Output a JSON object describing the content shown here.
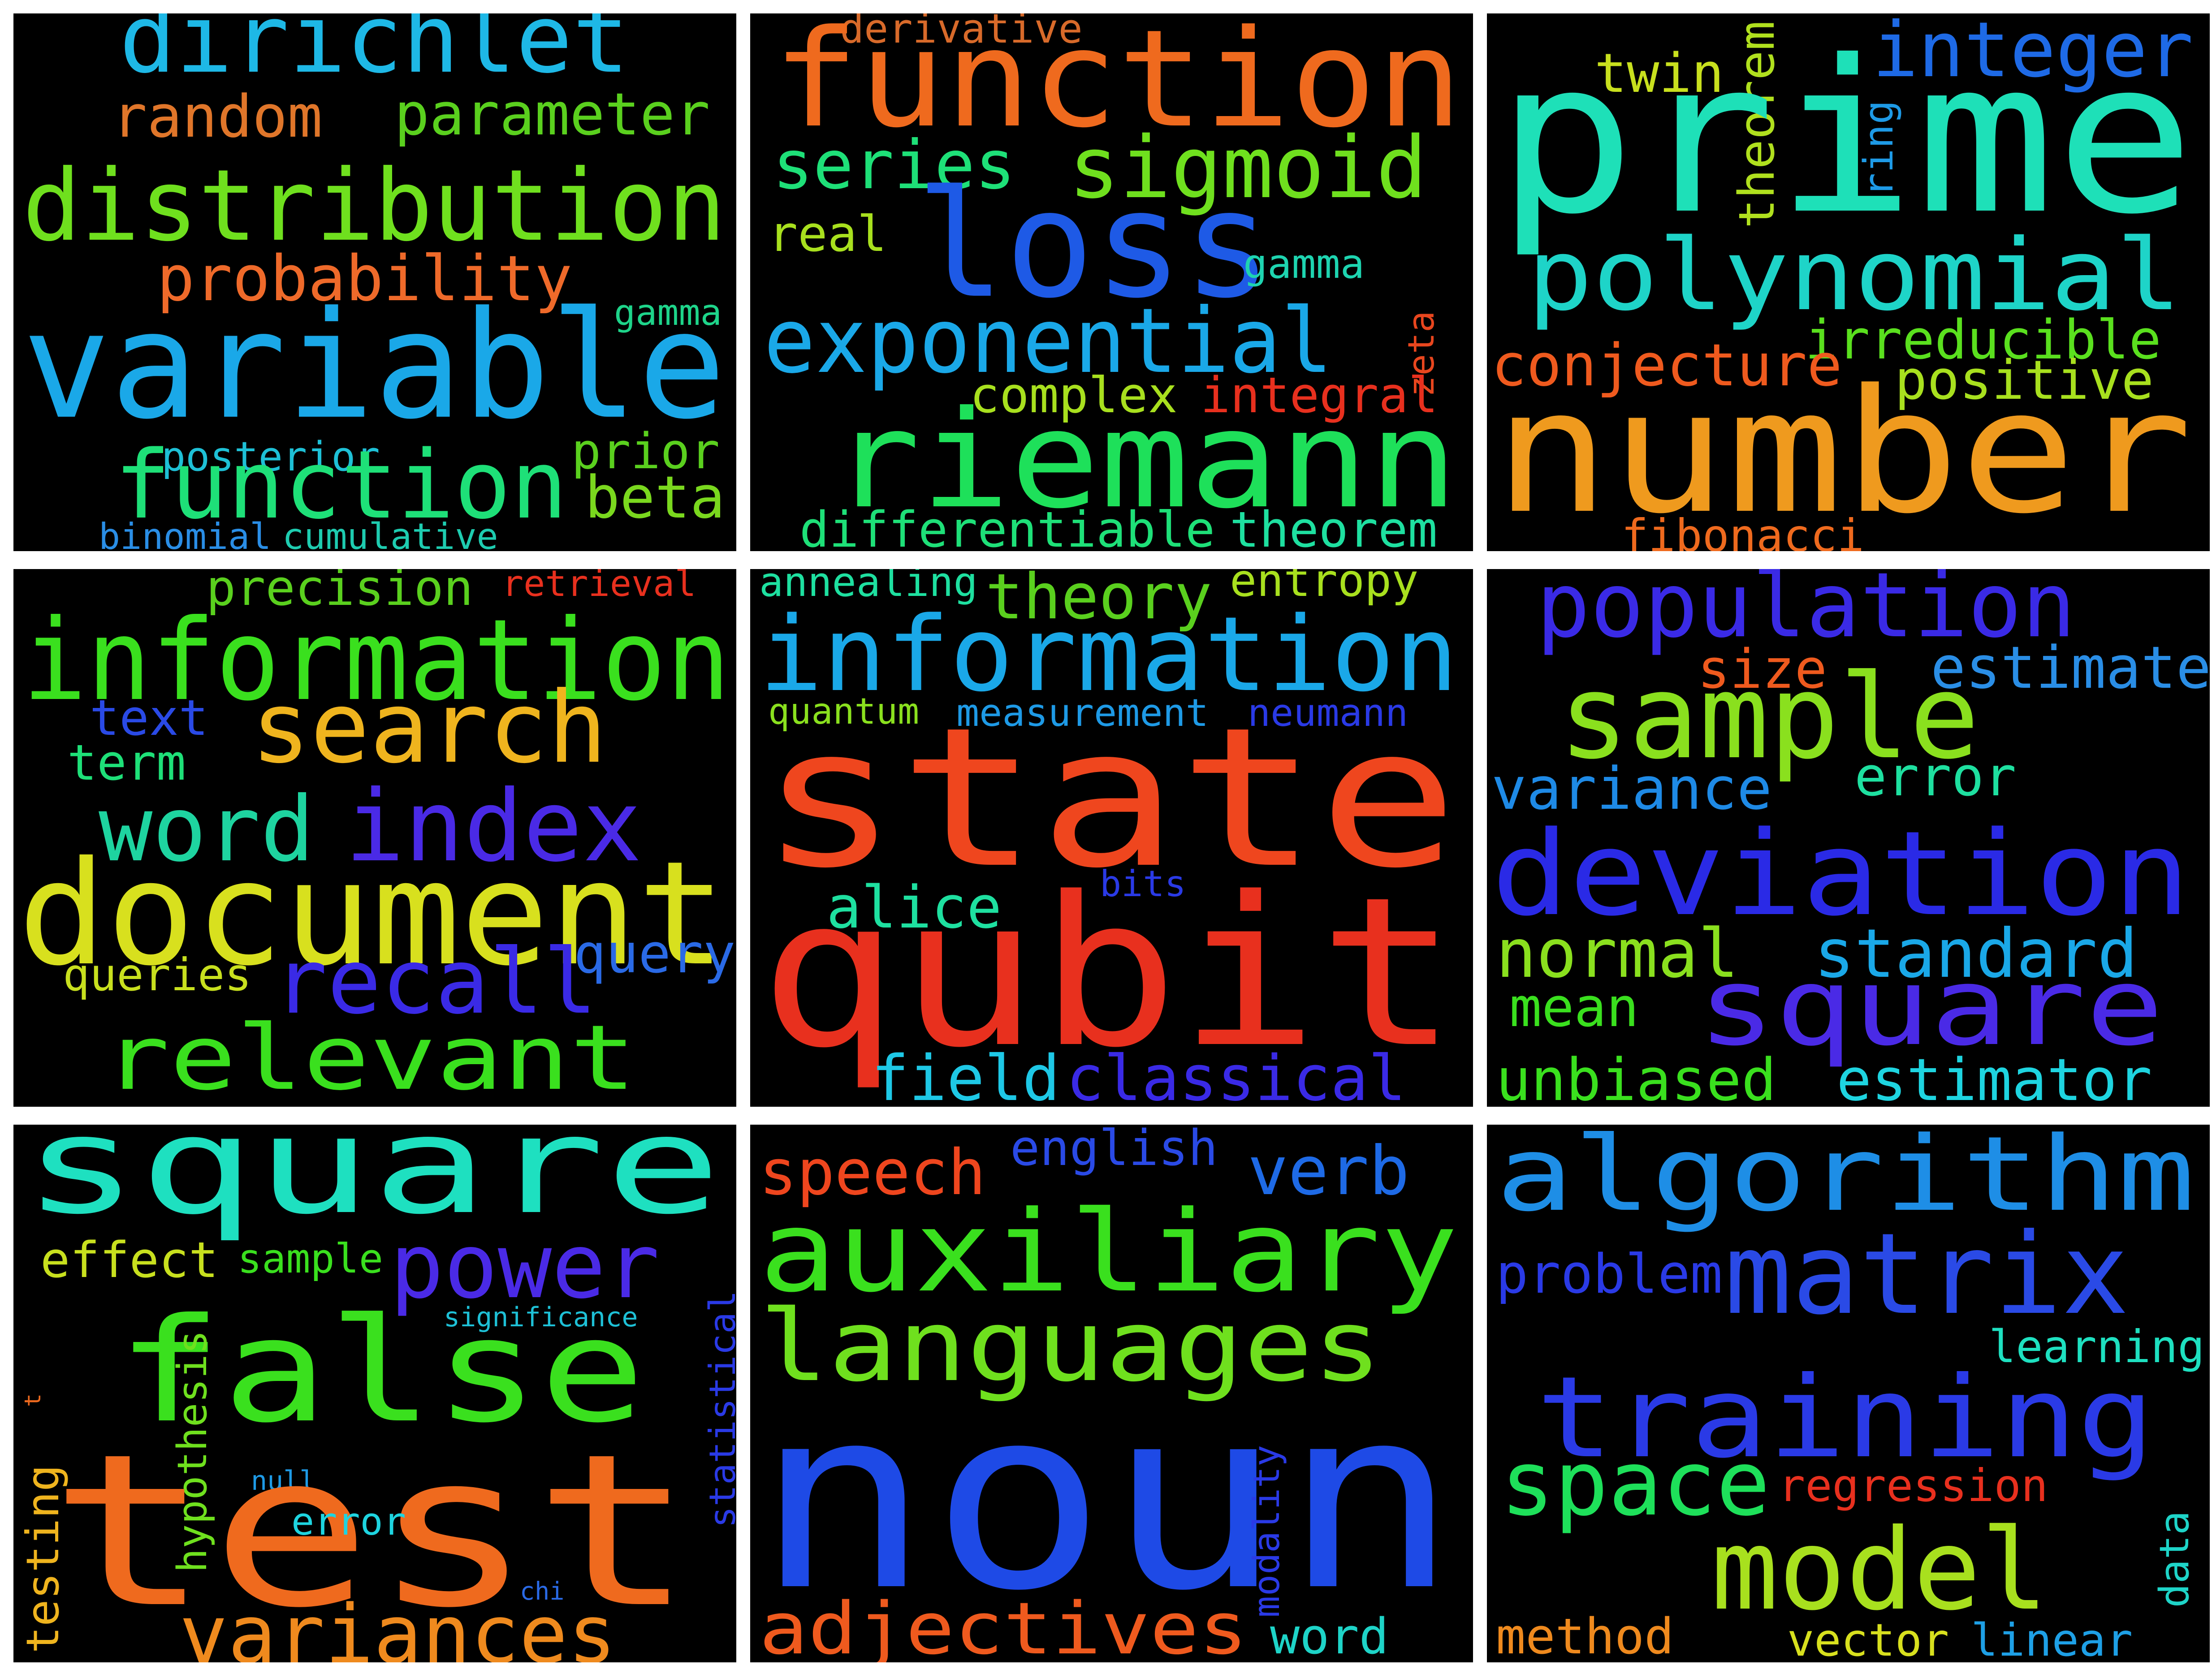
{
  "wordclouds": [
    {
      "words": [
        {
          "text": "dirichlet",
          "color": "#1eb8e6"
        },
        {
          "text": "random",
          "color": "#e0762a"
        },
        {
          "text": "parameter",
          "color": "#5ad01e"
        },
        {
          "text": "distribution",
          "color": "#6fe01e"
        },
        {
          "text": "probability",
          "color": "#ef6a2a"
        },
        {
          "text": "gamma",
          "color": "#1ed48a"
        },
        {
          "text": "variable",
          "color": "#1aa8e8"
        },
        {
          "text": "posterior",
          "color": "#1ec0d6"
        },
        {
          "text": "prior",
          "color": "#5ad01e"
        },
        {
          "text": "function",
          "color": "#1ee078"
        },
        {
          "text": "beta",
          "color": "#7ad81e"
        },
        {
          "text": "binomial",
          "color": "#2a8ee6"
        },
        {
          "text": "cumulative",
          "color": "#1eccb0"
        }
      ]
    },
    {
      "words": [
        {
          "text": "derivative",
          "color": "#d86a2a"
        },
        {
          "text": "function",
          "color": "#ef6a1e"
        },
        {
          "text": "series",
          "color": "#1ee078"
        },
        {
          "text": "sigmoid",
          "color": "#6fe01e"
        },
        {
          "text": "real",
          "color": "#a8e01e"
        },
        {
          "text": "loss",
          "color": "#1e5ae6"
        },
        {
          "text": "gamma",
          "color": "#1ed4b0"
        },
        {
          "text": "zeta",
          "color": "#e8461e"
        },
        {
          "text": "exponential",
          "color": "#1aa8e8"
        },
        {
          "text": "complex",
          "color": "#a8e01e"
        },
        {
          "text": "integral",
          "color": "#e8301e"
        },
        {
          "text": "riemann",
          "color": "#1ee05a"
        },
        {
          "text": "differentiable",
          "color": "#1ee078"
        },
        {
          "text": "theorem",
          "color": "#1ee0a0"
        }
      ]
    },
    {
      "words": [
        {
          "text": "twin",
          "color": "#c8e01e"
        },
        {
          "text": "theorem",
          "color": "#b0e01e"
        },
        {
          "text": "integer",
          "color": "#1e6ae6"
        },
        {
          "text": "prime",
          "color": "#1ee0b8"
        },
        {
          "text": "ring",
          "color": "#1e9ae6"
        },
        {
          "text": "polynomial",
          "color": "#1ed4c8"
        },
        {
          "text": "irreducible",
          "color": "#5ae01e"
        },
        {
          "text": "conjecture",
          "color": "#ef5a1e"
        },
        {
          "text": "positive",
          "color": "#a8e01e"
        },
        {
          "text": "number",
          "color": "#ef9a1e"
        },
        {
          "text": "fibonacci",
          "color": "#ef6a1e"
        }
      ]
    },
    {
      "words": [
        {
          "text": "precision",
          "color": "#5ad01e"
        },
        {
          "text": "retrieval",
          "color": "#e8301e"
        },
        {
          "text": "information",
          "color": "#3ae01e"
        },
        {
          "text": "text",
          "color": "#2a4ae6"
        },
        {
          "text": "search",
          "color": "#efb41e"
        },
        {
          "text": "term",
          "color": "#1ee078"
        },
        {
          "text": "word",
          "color": "#1ed4a0"
        },
        {
          "text": "index",
          "color": "#4a2ae6"
        },
        {
          "text": "document",
          "color": "#d8e01e"
        },
        {
          "text": "queries",
          "color": "#c8e01e"
        },
        {
          "text": "recall",
          "color": "#3a2ae6"
        },
        {
          "text": "query",
          "color": "#2a6ae6"
        },
        {
          "text": "relevant",
          "color": "#3ae01e"
        }
      ]
    },
    {
      "words": [
        {
          "text": "annealing",
          "color": "#1ee0a0"
        },
        {
          "text": "theory",
          "color": "#5ad01e"
        },
        {
          "text": "entropy",
          "color": "#a8e01e"
        },
        {
          "text": "information",
          "color": "#1aa8e8"
        },
        {
          "text": "quantum",
          "color": "#8ae01e"
        },
        {
          "text": "measurement",
          "color": "#1e9ae6"
        },
        {
          "text": "neumann",
          "color": "#2a3ae6"
        },
        {
          "text": "state",
          "color": "#ef461e"
        },
        {
          "text": "alice",
          "color": "#1ee0a0"
        },
        {
          "text": "bits",
          "color": "#2a3ae6"
        },
        {
          "text": "qubit",
          "color": "#e8301e"
        },
        {
          "text": "field",
          "color": "#1ec8e6"
        },
        {
          "text": "classical",
          "color": "#3a2ae6"
        }
      ]
    },
    {
      "words": [
        {
          "text": "population",
          "color": "#3a2ae6"
        },
        {
          "text": "size",
          "color": "#ef5a1e"
        },
        {
          "text": "estimate",
          "color": "#2a8ee6"
        },
        {
          "text": "sample",
          "color": "#8ae01e"
        },
        {
          "text": "variance",
          "color": "#1e8ae6"
        },
        {
          "text": "error",
          "color": "#1ee0a0"
        },
        {
          "text": "deviation",
          "color": "#2a2ae6"
        },
        {
          "text": "normal",
          "color": "#8ae01e"
        },
        {
          "text": "standard",
          "color": "#1aa8e8"
        },
        {
          "text": "mean",
          "color": "#3ae01e"
        },
        {
          "text": "square",
          "color": "#4a2ae6"
        },
        {
          "text": "unbiased",
          "color": "#3ae01e"
        },
        {
          "text": "estimator",
          "color": "#1ed4e0"
        }
      ]
    },
    {
      "words": [
        {
          "text": "square",
          "color": "#1ee0c0"
        },
        {
          "text": "effect",
          "color": "#c8e01e"
        },
        {
          "text": "sample",
          "color": "#3ae01e"
        },
        {
          "text": "power",
          "color": "#4a2ae6"
        },
        {
          "text": "significance",
          "color": "#1ec0d6"
        },
        {
          "text": "false",
          "color": "#3ae01e"
        },
        {
          "text": "t",
          "color": "#ef6a1e"
        },
        {
          "text": "hypothesis",
          "color": "#6fe01e"
        },
        {
          "text": "null",
          "color": "#1e9ae6"
        },
        {
          "text": "test",
          "color": "#ef6a1e"
        },
        {
          "text": "statistical",
          "color": "#2a3ae6"
        },
        {
          "text": "error",
          "color": "#1ed4e0"
        },
        {
          "text": "testing",
          "color": "#efb41e"
        },
        {
          "text": "chi",
          "color": "#2a6ae6"
        },
        {
          "text": "variances",
          "color": "#ef8a1e"
        }
      ]
    },
    {
      "words": [
        {
          "text": "speech",
          "color": "#ef461e"
        },
        {
          "text": "english",
          "color": "#2a4ae6"
        },
        {
          "text": "verb",
          "color": "#1e6ae6"
        },
        {
          "text": "auxiliary",
          "color": "#3ae01e"
        },
        {
          "text": "languages",
          "color": "#6fe01e"
        },
        {
          "text": "noun",
          "color": "#1e4ae6"
        },
        {
          "text": "modality",
          "color": "#2a3ae6"
        },
        {
          "text": "adjectives",
          "color": "#ef5a1e"
        },
        {
          "text": "word",
          "color": "#1ed4c8"
        }
      ]
    },
    {
      "words": [
        {
          "text": "algorithm",
          "color": "#1e8ee6"
        },
        {
          "text": "problem",
          "color": "#2a3ae6"
        },
        {
          "text": "matrix",
          "color": "#2a4ae6"
        },
        {
          "text": "learning",
          "color": "#1ee0c0"
        },
        {
          "text": "training",
          "color": "#2a3ae6"
        },
        {
          "text": "space",
          "color": "#1ee05a"
        },
        {
          "text": "regression",
          "color": "#e8301e"
        },
        {
          "text": "data",
          "color": "#1ed4c8"
        },
        {
          "text": "model",
          "color": "#a8e01e"
        },
        {
          "text": "method",
          "color": "#ef8a1e"
        },
        {
          "text": "vector",
          "color": "#d8e01e"
        },
        {
          "text": "linear",
          "color": "#1ea0e6"
        }
      ]
    }
  ]
}
